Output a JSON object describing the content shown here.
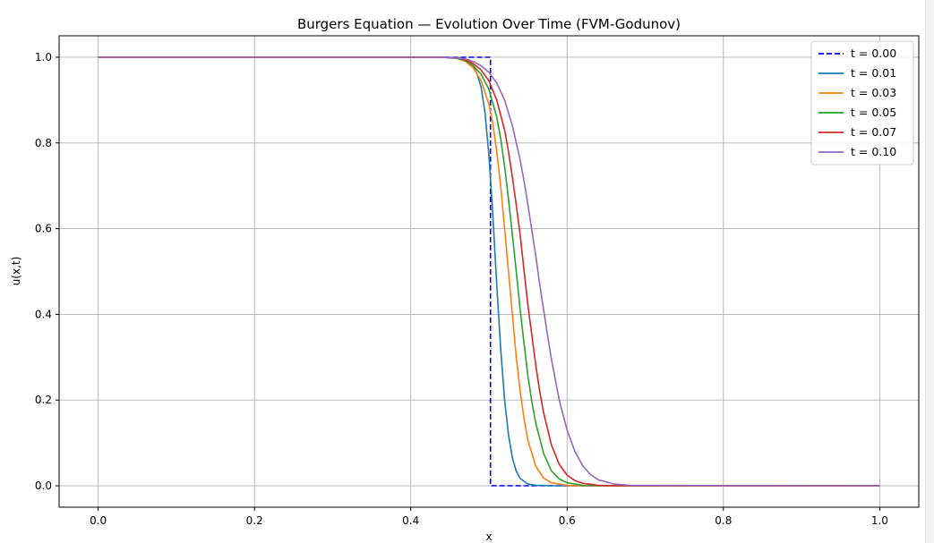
{
  "chart_data": {
    "type": "line",
    "title": "Burgers Equation — Evolution Over Time (FVM-Godunov)",
    "xlabel": "x",
    "ylabel": "u(x,t)",
    "xlim": [
      -0.05,
      1.05
    ],
    "ylim": [
      -0.05,
      1.05
    ],
    "xticks": [
      0.0,
      0.2,
      0.4,
      0.6,
      0.8,
      1.0
    ],
    "xtick_labels": [
      "0.0",
      "0.2",
      "0.4",
      "0.6",
      "0.8",
      "1.0"
    ],
    "yticks": [
      0.0,
      0.2,
      0.4,
      0.6,
      0.8,
      1.0
    ],
    "ytick_labels": [
      "0.0",
      "0.2",
      "0.4",
      "0.6",
      "0.8",
      "1.0"
    ],
    "grid": true,
    "legend_position": "top-right",
    "series": [
      {
        "name": "t = 0.00",
        "color": "#0000ff",
        "dash": true,
        "x": [
          0.0,
          0.5,
          0.5,
          0.502,
          0.502,
          1.0
        ],
        "y": [
          1.0,
          1.0,
          1.0,
          1.0,
          0.0,
          0.0
        ]
      },
      {
        "name": "t = 0.01",
        "color": "#1f77b4",
        "dash": false,
        "x": [
          0.0,
          0.44,
          0.46,
          0.47,
          0.48,
          0.485,
          0.49,
          0.495,
          0.5,
          0.505,
          0.51,
          0.515,
          0.52,
          0.525,
          0.53,
          0.535,
          0.54,
          0.55,
          0.56,
          0.58,
          0.6,
          0.65,
          0.7,
          1.0
        ],
        "y": [
          1.0,
          1.0,
          0.999,
          0.995,
          0.98,
          0.96,
          0.93,
          0.87,
          0.77,
          0.63,
          0.47,
          0.32,
          0.2,
          0.12,
          0.065,
          0.034,
          0.017,
          0.004,
          0.001,
          0.0,
          0.0,
          0.0,
          0.0,
          0.0
        ]
      },
      {
        "name": "t = 0.03",
        "color": "#ff7f0e",
        "dash": false,
        "x": [
          0.0,
          0.44,
          0.46,
          0.47,
          0.48,
          0.49,
          0.5,
          0.505,
          0.51,
          0.515,
          0.52,
          0.525,
          0.53,
          0.535,
          0.54,
          0.545,
          0.55,
          0.56,
          0.57,
          0.58,
          0.6,
          0.62,
          0.65,
          1.0
        ],
        "y": [
          1.0,
          1.0,
          0.997,
          0.99,
          0.975,
          0.945,
          0.89,
          0.845,
          0.78,
          0.7,
          0.6,
          0.5,
          0.4,
          0.3,
          0.22,
          0.155,
          0.105,
          0.045,
          0.018,
          0.007,
          0.001,
          0.0,
          0.0,
          0.0
        ]
      },
      {
        "name": "t = 0.05",
        "color": "#2ca02c",
        "dash": false,
        "x": [
          0.0,
          0.44,
          0.46,
          0.47,
          0.48,
          0.49,
          0.5,
          0.51,
          0.515,
          0.52,
          0.525,
          0.53,
          0.535,
          0.54,
          0.545,
          0.55,
          0.555,
          0.56,
          0.57,
          0.58,
          0.59,
          0.6,
          0.62,
          0.65,
          1.0
        ],
        "y": [
          1.0,
          1.0,
          0.997,
          0.992,
          0.98,
          0.96,
          0.925,
          0.86,
          0.81,
          0.745,
          0.67,
          0.585,
          0.5,
          0.41,
          0.33,
          0.255,
          0.195,
          0.145,
          0.075,
          0.035,
          0.016,
          0.007,
          0.001,
          0.0,
          0.0
        ]
      },
      {
        "name": "t = 0.07",
        "color": "#d62728",
        "dash": false,
        "x": [
          0.0,
          0.44,
          0.46,
          0.47,
          0.48,
          0.49,
          0.5,
          0.51,
          0.52,
          0.525,
          0.53,
          0.535,
          0.54,
          0.545,
          0.55,
          0.555,
          0.56,
          0.565,
          0.57,
          0.58,
          0.59,
          0.6,
          0.61,
          0.62,
          0.64,
          0.66,
          1.0
        ],
        "y": [
          1.0,
          1.0,
          0.998,
          0.994,
          0.985,
          0.97,
          0.945,
          0.9,
          0.83,
          0.78,
          0.72,
          0.655,
          0.585,
          0.5,
          0.42,
          0.35,
          0.28,
          0.22,
          0.17,
          0.095,
          0.05,
          0.025,
          0.012,
          0.006,
          0.001,
          0.0,
          0.0
        ]
      },
      {
        "name": "t = 0.10",
        "color": "#9467bd",
        "dash": false,
        "x": [
          0.0,
          0.44,
          0.46,
          0.47,
          0.48,
          0.49,
          0.5,
          0.51,
          0.52,
          0.53,
          0.54,
          0.545,
          0.55,
          0.555,
          0.56,
          0.565,
          0.57,
          0.575,
          0.58,
          0.59,
          0.6,
          0.61,
          0.62,
          0.63,
          0.64,
          0.66,
          0.68,
          1.0
        ],
        "y": [
          1.0,
          1.0,
          0.998,
          0.996,
          0.99,
          0.98,
          0.965,
          0.94,
          0.9,
          0.84,
          0.76,
          0.71,
          0.655,
          0.595,
          0.535,
          0.47,
          0.41,
          0.35,
          0.295,
          0.2,
          0.13,
          0.08,
          0.047,
          0.026,
          0.014,
          0.004,
          0.001,
          0.0
        ]
      }
    ]
  }
}
